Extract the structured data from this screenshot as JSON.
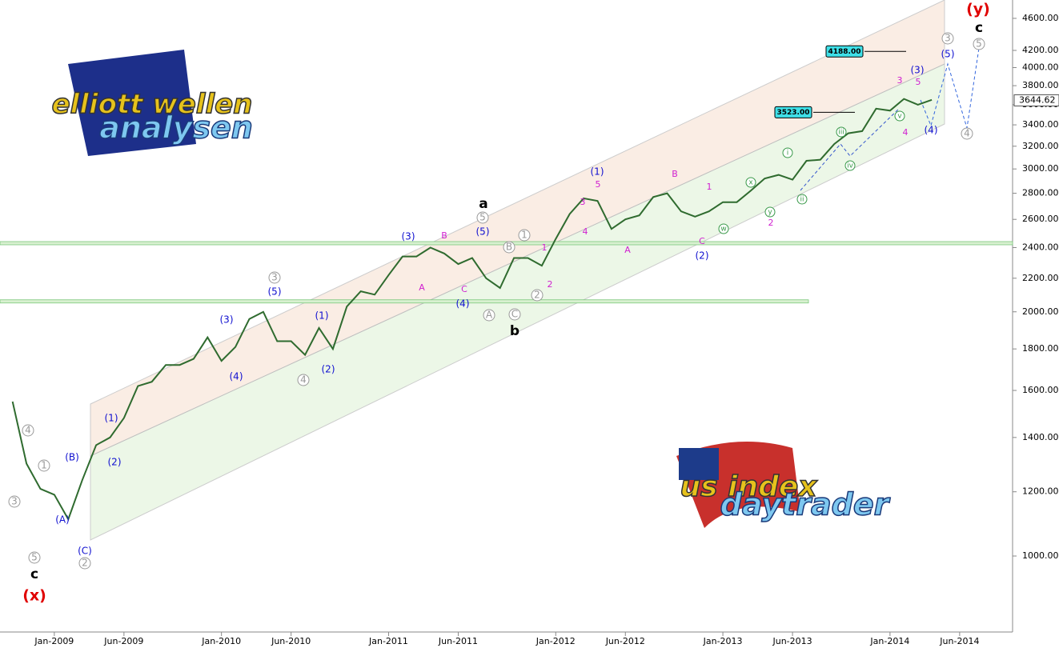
{
  "chart_data": {
    "type": "line",
    "log_scale": true,
    "color": "#2f6b2f",
    "x": [
      -3,
      -2,
      -1,
      0,
      1,
      2,
      3,
      4,
      5,
      6,
      7,
      8,
      9,
      10,
      11,
      12,
      13,
      14,
      15,
      16,
      17,
      18,
      19,
      20,
      21,
      22,
      23,
      24,
      25,
      26,
      27,
      28,
      29,
      30,
      31,
      32,
      33,
      34,
      35,
      36,
      37,
      38,
      39,
      40,
      41,
      42,
      43,
      44,
      45,
      46,
      47,
      48,
      49,
      50,
      51,
      52,
      53,
      54,
      55,
      56,
      57,
      58,
      59,
      60,
      61,
      62,
      63
    ],
    "values": [
      1550,
      1300,
      1210,
      1190,
      1110,
      1240,
      1370,
      1400,
      1480,
      1620,
      1640,
      1720,
      1720,
      1750,
      1860,
      1740,
      1810,
      1960,
      2000,
      1840,
      1840,
      1770,
      1910,
      1800,
      2030,
      2120,
      2100,
      2220,
      2340,
      2340,
      2400,
      2360,
      2290,
      2330,
      2200,
      2140,
      2330,
      2330,
      2280,
      2460,
      2640,
      2760,
      2740,
      2530,
      2600,
      2630,
      2770,
      2800,
      2660,
      2620,
      2660,
      2730,
      2730,
      2820,
      2920,
      2950,
      2910,
      3070,
      3080,
      3220,
      3320,
      3340,
      3560,
      3540,
      3660,
      3600,
      3650
    ],
    "xlim": [
      -3.9,
      68.8
    ],
    "ylim": [
      806,
      4846
    ],
    "xticks": [
      {
        "value": 0,
        "label": "Jan-2009"
      },
      {
        "value": 5,
        "label": "Jun-2009"
      },
      {
        "value": 12,
        "label": "Jan-2010"
      },
      {
        "value": 17,
        "label": "Jun-2010"
      },
      {
        "value": 24,
        "label": "Jan-2011"
      },
      {
        "value": 29,
        "label": "Jun-2011"
      },
      {
        "value": 36,
        "label": "Jan-2012"
      },
      {
        "value": 41,
        "label": "Jun-2012"
      },
      {
        "value": 48,
        "label": "Jan-2013"
      },
      {
        "value": 53,
        "label": "Jun-2013"
      },
      {
        "value": 60,
        "label": "Jan-2014"
      },
      {
        "value": 65,
        "label": "Jun-2014"
      }
    ],
    "yticks": [
      {
        "value": 1000,
        "label": "1000.00"
      },
      {
        "value": 1200,
        "label": "1200.00"
      },
      {
        "value": 1400,
        "label": "1400.00"
      },
      {
        "value": 1600,
        "label": "1600.00"
      },
      {
        "value": 1800,
        "label": "1800.00"
      },
      {
        "value": 2000,
        "label": "2000.00"
      },
      {
        "value": 2200,
        "label": "2200.00"
      },
      {
        "value": 2400,
        "label": "2400.00"
      },
      {
        "value": 2600,
        "label": "2600.00"
      },
      {
        "value": 2800,
        "label": "2800.00"
      },
      {
        "value": 3000,
        "label": "3000.00"
      },
      {
        "value": 3200,
        "label": "3200.00"
      },
      {
        "value": 3400,
        "label": "3400.00"
      },
      {
        "value": 3600,
        "label": "3600.00"
      },
      {
        "value": 3800,
        "label": "3800.00"
      },
      {
        "value": 4000,
        "label": "4000.00"
      },
      {
        "value": 4200,
        "label": "4200.00"
      },
      {
        "value": 4600,
        "label": "4600.00"
      }
    ],
    "last_price": {
      "value": 3644.62,
      "label": "3644.62"
    },
    "targets": [
      {
        "value": 4188,
        "label": "4188.00"
      },
      {
        "value": 3523,
        "label": "3523.00"
      }
    ],
    "levels": [
      2430,
      2060
    ],
    "wave_labels": [
      "5",
      "c",
      "(x)",
      "3",
      "4",
      "1",
      "(A)",
      "(B)",
      "(C)",
      "2",
      "(1)",
      "(2)",
      "(3)",
      "(4)",
      "3",
      "(5)",
      "4",
      "(1)",
      "(2)",
      "(3)",
      "A",
      "B",
      "C",
      "(4)",
      "a",
      "5",
      "(5)",
      "A",
      "B",
      "1",
      "C",
      "b",
      "1",
      "2",
      "2",
      "4",
      "3",
      "(1)",
      "5",
      "A",
      "B",
      "1",
      "C",
      "(2)",
      "w",
      "x",
      "y",
      "2",
      "i",
      "ii",
      "iii",
      "iv",
      "v",
      "3",
      "4",
      "5",
      "(3)",
      "(4)",
      "3",
      "(5)",
      "4",
      "(y)",
      "c",
      "5"
    ]
  },
  "logos": [
    "elliott wellen",
    "analysen",
    "us index",
    "daytrader"
  ]
}
